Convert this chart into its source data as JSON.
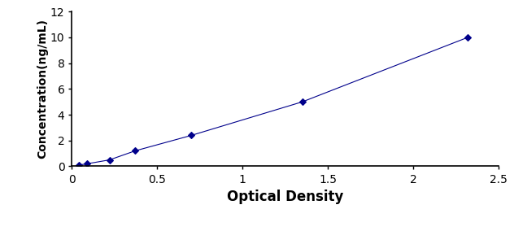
{
  "x": [
    0.04,
    0.09,
    0.22,
    0.37,
    0.7,
    1.35,
    2.32
  ],
  "y": [
    0.1,
    0.2,
    0.5,
    1.2,
    2.4,
    5.0,
    10.0
  ],
  "line_color": "#00008B",
  "marker": "D",
  "marker_size": 4,
  "marker_facecolor": "#00008B",
  "line_style": "-",
  "line_width": 0.8,
  "xlabel": "Optical Density",
  "ylabel": "Concentration(ng/mL)",
  "xlim": [
    0,
    2.5
  ],
  "ylim": [
    0,
    12
  ],
  "xticks": [
    0,
    0.5,
    1,
    1.5,
    2,
    2.5
  ],
  "xticklabels": [
    "0",
    "0.5",
    "1",
    "1.5",
    "2",
    "2.5"
  ],
  "yticks": [
    0,
    2,
    4,
    6,
    8,
    10,
    12
  ],
  "yticklabels": [
    "0",
    "2",
    "4",
    "6",
    "8",
    "10",
    "12"
  ],
  "xlabel_fontsize": 12,
  "ylabel_fontsize": 10,
  "tick_fontsize": 10,
  "background_color": "#ffffff"
}
